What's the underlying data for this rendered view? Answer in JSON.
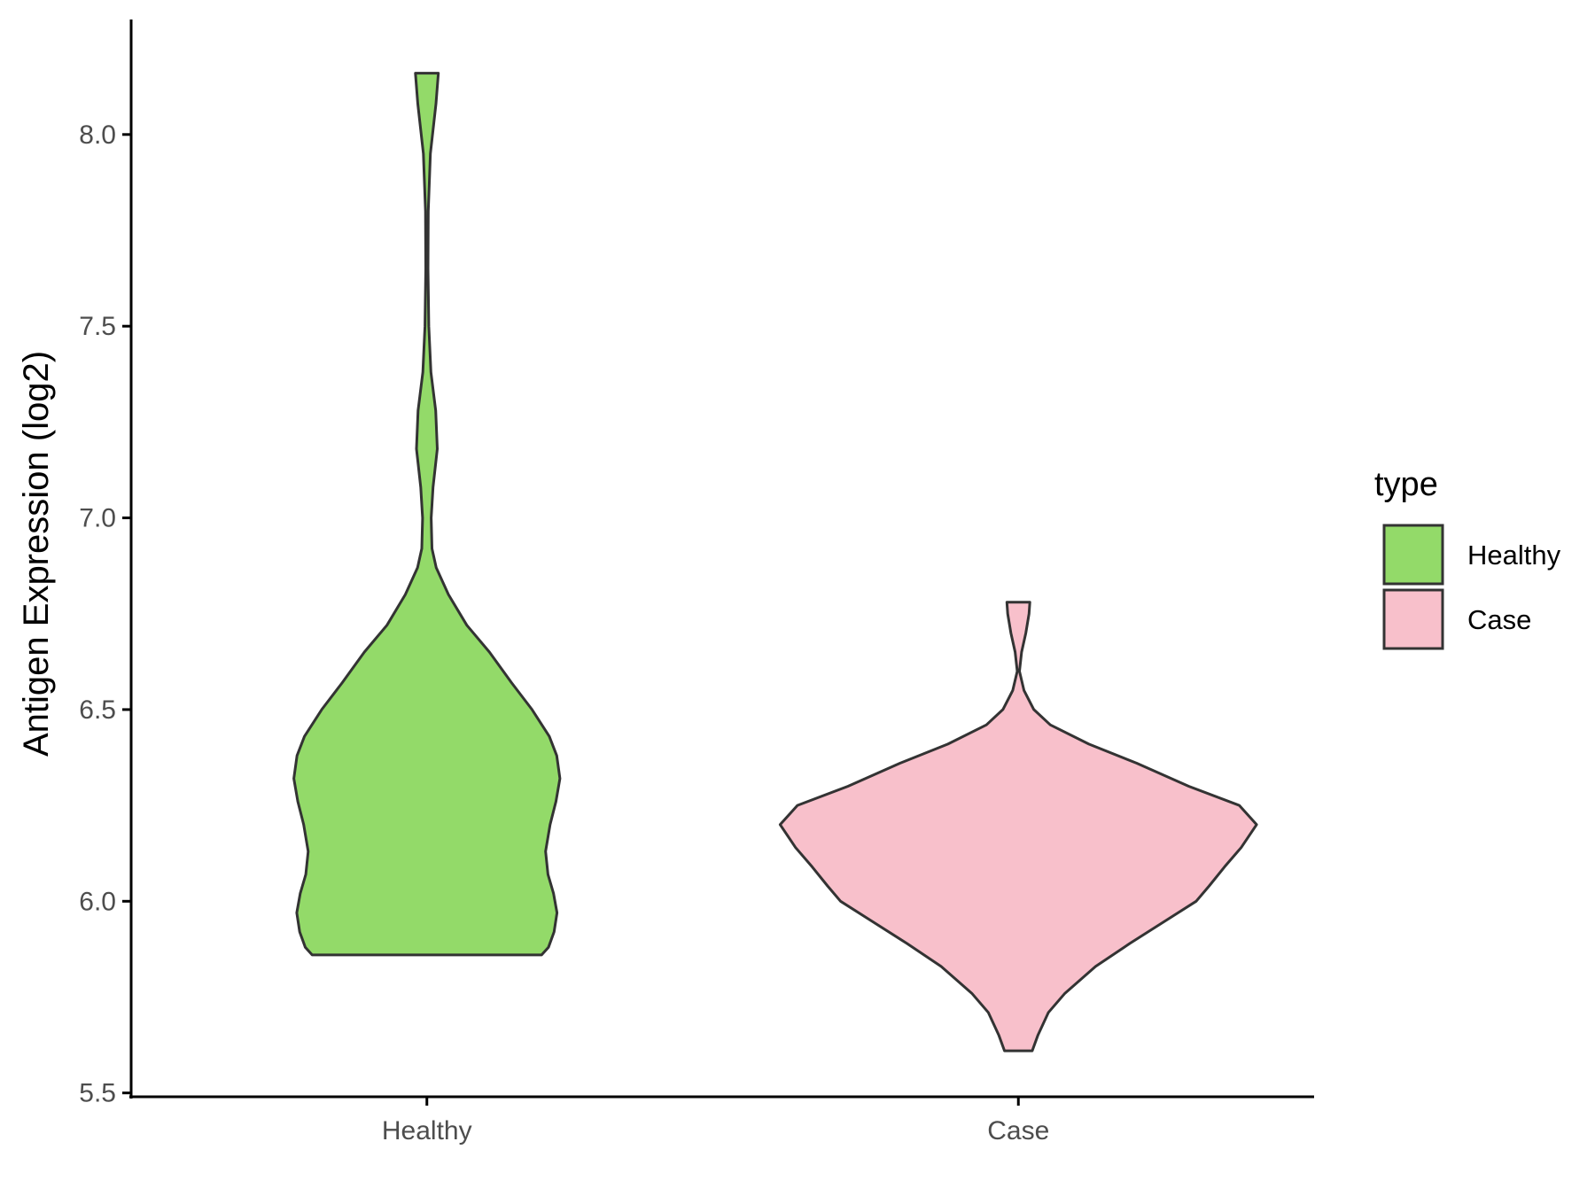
{
  "chart_data": {
    "type": "violin",
    "title": "",
    "xlabel": "",
    "ylabel": "Antigen Expression (log2)",
    "categories": [
      "Healthy",
      "Case"
    ],
    "ylim": [
      5.49,
      8.3
    ],
    "yticks": [
      5.5,
      6.0,
      6.5,
      7.0,
      7.5,
      8.0
    ],
    "ytick_labels": [
      "5.5",
      "6.0",
      "6.5",
      "7.0",
      "7.5",
      "8.0"
    ],
    "grid": false,
    "legend": {
      "title": "type",
      "placement": "right",
      "entries": [
        {
          "label": "Healthy",
          "color": "#93DA69"
        },
        {
          "label": "Case",
          "color": "#F8C0CB"
        }
      ]
    },
    "series": [
      {
        "category": "Healthy",
        "color": "#93DA69",
        "min": 5.86,
        "max": 8.16,
        "density": [
          [
            5.86,
            0.431
          ],
          [
            5.88,
            0.457
          ],
          [
            5.92,
            0.478
          ],
          [
            5.97,
            0.489
          ],
          [
            6.02,
            0.476
          ],
          [
            6.07,
            0.455
          ],
          [
            6.13,
            0.446
          ],
          [
            6.2,
            0.463
          ],
          [
            6.26,
            0.485
          ],
          [
            6.32,
            0.5
          ],
          [
            6.38,
            0.488
          ],
          [
            6.43,
            0.46
          ],
          [
            6.5,
            0.395
          ],
          [
            6.57,
            0.318
          ],
          [
            6.65,
            0.235
          ],
          [
            6.72,
            0.15
          ],
          [
            6.8,
            0.081
          ],
          [
            6.87,
            0.035
          ],
          [
            6.92,
            0.019
          ],
          [
            7.0,
            0.016
          ],
          [
            7.08,
            0.023
          ],
          [
            7.18,
            0.039
          ],
          [
            7.28,
            0.033
          ],
          [
            7.38,
            0.015
          ],
          [
            7.5,
            0.007
          ],
          [
            7.65,
            0.004
          ],
          [
            7.8,
            0.005
          ],
          [
            7.95,
            0.013
          ],
          [
            8.08,
            0.034
          ],
          [
            8.16,
            0.043
          ]
        ]
      },
      {
        "category": "Case",
        "color": "#F8C0CB",
        "min": 5.61,
        "max": 6.78,
        "density": [
          [
            5.61,
            0.052
          ],
          [
            5.65,
            0.073
          ],
          [
            5.71,
            0.113
          ],
          [
            5.76,
            0.175
          ],
          [
            5.83,
            0.29
          ],
          [
            5.89,
            0.419
          ],
          [
            5.95,
            0.555
          ],
          [
            6.0,
            0.668
          ],
          [
            6.04,
            0.717
          ],
          [
            6.09,
            0.775
          ],
          [
            6.14,
            0.837
          ],
          [
            6.2,
            0.895
          ],
          [
            6.25,
            0.83
          ],
          [
            6.3,
            0.64
          ],
          [
            6.36,
            0.445
          ],
          [
            6.41,
            0.265
          ],
          [
            6.46,
            0.12
          ],
          [
            6.5,
            0.058
          ],
          [
            6.55,
            0.021
          ],
          [
            6.6,
            0.004
          ],
          [
            6.65,
            0.012
          ],
          [
            6.7,
            0.028
          ],
          [
            6.75,
            0.04
          ],
          [
            6.78,
            0.043
          ]
        ]
      }
    ]
  }
}
